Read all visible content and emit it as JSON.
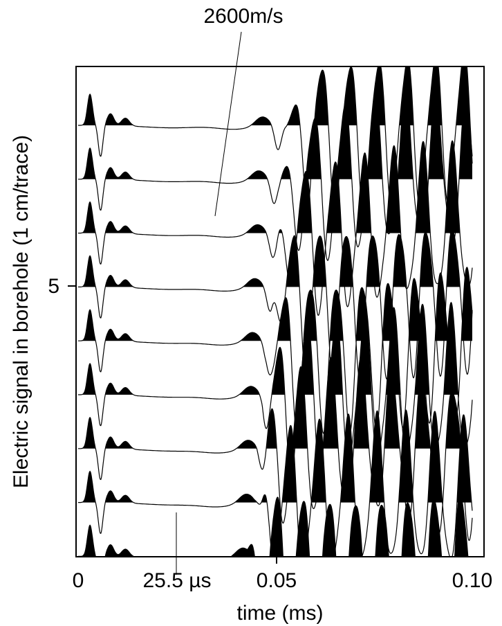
{
  "chart_data": {
    "type": "line",
    "title": "",
    "xlabel": "time (ms)",
    "ylabel": "Electric signal in borehole (1 cm/trace)",
    "xlim": [
      0,
      0.1
    ],
    "x_ticks": [
      {
        "value": 0,
        "label": "0"
      },
      {
        "value": 0.05,
        "label": "0.05"
      },
      {
        "value": 0.1,
        "label": "0.10"
      }
    ],
    "y_ticks": [
      {
        "value": 5,
        "label": "5"
      }
    ],
    "trace_count": 9,
    "trace_spacing_cm": 1,
    "style": "wiggle traces with positive lobes filled black",
    "annotations": [
      {
        "text": "2600m/s",
        "kind": "velocity line"
      },
      {
        "text": "25.5 µs",
        "kind": "time marker",
        "x": 0.0255
      }
    ],
    "features": {
      "early_pulse_time_ms": 0.003,
      "early_trough_time_ms": 0.0055,
      "late_trough_times_ms": [
        0.0507,
        0.0497,
        0.0494,
        0.0487,
        0.0481,
        0.0477,
        0.047,
        0.0466,
        0.0457
      ]
    }
  }
}
